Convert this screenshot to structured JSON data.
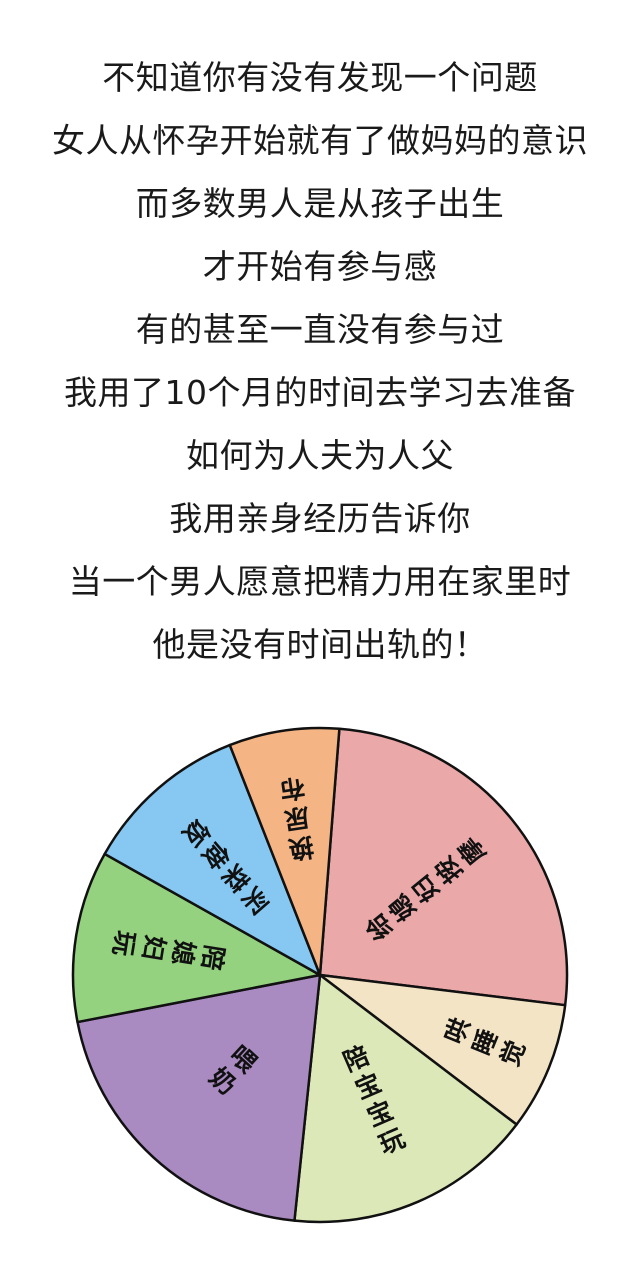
{
  "text_lines": [
    "不知道你有没有发现一个问题",
    "女人从怀孕开始就有了做妈妈的意识",
    "而多数男人是从孩子出生",
    "才开始有参与感",
    "有的甚至一直没有参与过",
    "我用了10个月的时间去学习去准备",
    "如何为人夫为人父",
    "我用亲身经历告诉你",
    "当一个男人愿意把精力用在家里时",
    "他是没有时间出轨的！"
  ],
  "chart_data": {
    "type": "pie",
    "title": "",
    "slices": [
      {
        "label": "给媳妇按摩",
        "value": 25.7,
        "color": "#eaa8a8"
      },
      {
        "label": "哄睡觉",
        "value": 8.4,
        "color": "#f3e4c5"
      },
      {
        "label": "陪宝宝玩",
        "value": 16.3,
        "color": "#dce8b8"
      },
      {
        "label": "喂奶",
        "value": 20.3,
        "color": "#a98bc2"
      },
      {
        "label": "陪媳妇玩",
        "value": 11.2,
        "color": "#94d27f"
      },
      {
        "label": "买菜做饭",
        "value": 10.9,
        "color": "#86c8f2"
      },
      {
        "label": "换尿布",
        "value": 7.2,
        "color": "#f4b483"
      }
    ]
  }
}
